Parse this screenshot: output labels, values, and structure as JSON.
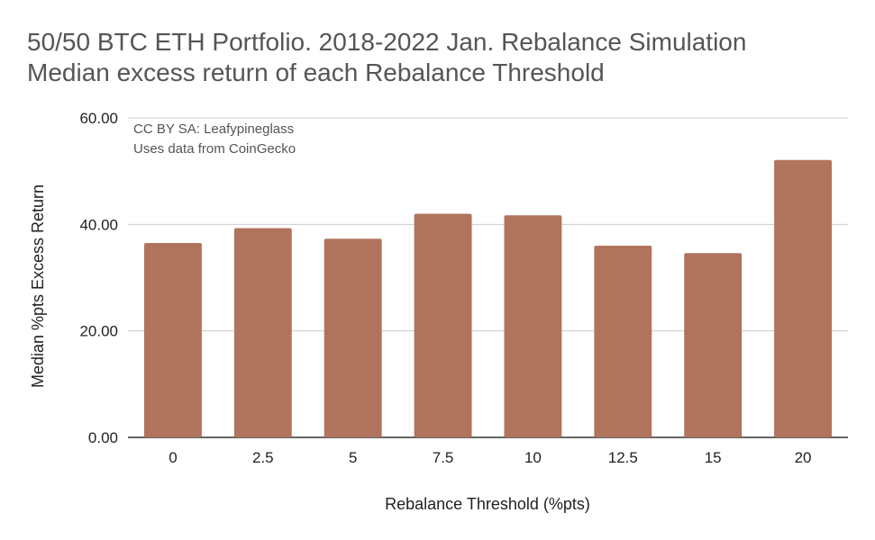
{
  "chart_data": {
    "type": "bar",
    "title": "50/50 BTC ETH Portfolio. 2018-2022 Jan. Rebalance Simulation",
    "subtitle": "Median excess return of each Rebalance Threshold",
    "annotation": [
      "CC BY SA: Leafypineglass",
      "Uses data from CoinGecko"
    ],
    "xlabel": "Rebalance Threshold (%pts)",
    "ylabel": "Median %pts Excess Return",
    "categories": [
      "0",
      "2.5",
      "5",
      "7.5",
      "10",
      "12.5",
      "15",
      "20"
    ],
    "values": [
      36.5,
      39.3,
      37.3,
      42.0,
      41.7,
      36.0,
      34.6,
      52.1
    ],
    "ylim": [
      0,
      60
    ],
    "yticks": [
      "0.00",
      "20.00",
      "40.00",
      "60.00"
    ],
    "grid": true,
    "legend": "none",
    "bar_color": "#b0745d"
  }
}
